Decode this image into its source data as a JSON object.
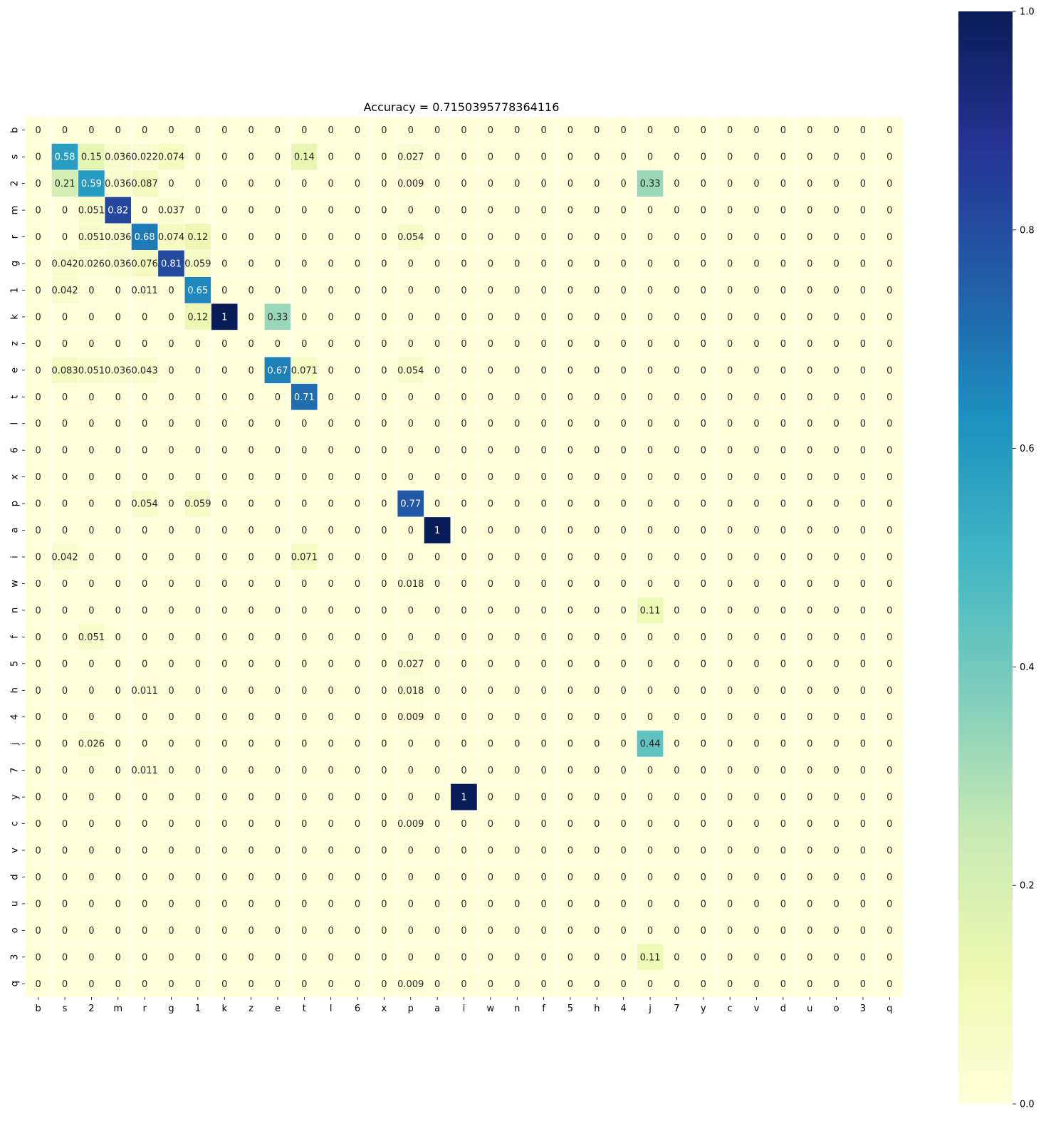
{
  "chart_data": {
    "type": "heatmap",
    "title": "Accuracy = 0.7150395778364116",
    "xlabel": "",
    "ylabel": "",
    "x_labels": [
      "b",
      "s",
      "2",
      "m",
      "r",
      "g",
      "1",
      "k",
      "z",
      "e",
      "t",
      "l",
      "6",
      "x",
      "p",
      "a",
      "i",
      "w",
      "n",
      "f",
      "5",
      "h",
      "4",
      "j",
      "7",
      "y",
      "c",
      "v",
      "d",
      "u",
      "o",
      "3",
      "q"
    ],
    "y_labels": [
      "b",
      "s",
      "2",
      "m",
      "r",
      "g",
      "1",
      "k",
      "z",
      "e",
      "t",
      "l",
      "6",
      "x",
      "p",
      "a",
      "i",
      "w",
      "n",
      "f",
      "5",
      "h",
      "4",
      "j",
      "7",
      "y",
      "c",
      "v",
      "d",
      "u",
      "o",
      "3",
      "q"
    ],
    "values": [
      [
        0,
        0,
        0,
        0,
        0,
        0,
        0,
        0,
        0,
        0,
        0,
        0,
        0,
        0,
        0,
        0,
        0,
        0,
        0,
        0,
        0,
        0,
        0,
        0,
        0,
        0,
        0,
        0,
        0,
        0,
        0,
        0,
        0
      ],
      [
        0,
        0.58,
        0.15,
        0.036,
        0.022,
        0.074,
        0,
        0,
        0,
        0,
        0.14,
        0,
        0,
        0,
        0.027,
        0,
        0,
        0,
        0,
        0,
        0,
        0,
        0,
        0,
        0,
        0,
        0,
        0,
        0,
        0,
        0,
        0,
        0
      ],
      [
        0,
        0.21,
        0.59,
        0.036,
        0.087,
        0,
        0,
        0,
        0,
        0,
        0,
        0,
        0,
        0,
        0.009,
        0,
        0,
        0,
        0,
        0,
        0,
        0,
        0,
        0.33,
        0,
        0,
        0,
        0,
        0,
        0,
        0,
        0,
        0
      ],
      [
        0,
        0,
        0.051,
        0.82,
        0,
        0.037,
        0,
        0,
        0,
        0,
        0,
        0,
        0,
        0,
        0,
        0,
        0,
        0,
        0,
        0,
        0,
        0,
        0,
        0,
        0,
        0,
        0,
        0,
        0,
        0,
        0,
        0,
        0
      ],
      [
        0,
        0,
        0.051,
        0.036,
        0.68,
        0.074,
        0.12,
        0,
        0,
        0,
        0,
        0,
        0,
        0,
        0.054,
        0,
        0,
        0,
        0,
        0,
        0,
        0,
        0,
        0,
        0,
        0,
        0,
        0,
        0,
        0,
        0,
        0,
        0
      ],
      [
        0,
        0.042,
        0.026,
        0.036,
        0.076,
        0.81,
        0.059,
        0,
        0,
        0,
        0,
        0,
        0,
        0,
        0,
        0,
        0,
        0,
        0,
        0,
        0,
        0,
        0,
        0,
        0,
        0,
        0,
        0,
        0,
        0,
        0,
        0,
        0
      ],
      [
        0,
        0.042,
        0,
        0,
        0.011,
        0,
        0.65,
        0,
        0,
        0,
        0,
        0,
        0,
        0,
        0,
        0,
        0,
        0,
        0,
        0,
        0,
        0,
        0,
        0,
        0,
        0,
        0,
        0,
        0,
        0,
        0,
        0,
        0
      ],
      [
        0,
        0,
        0,
        0,
        0,
        0,
        0.12,
        1,
        0,
        0.33,
        0,
        0,
        0,
        0,
        0,
        0,
        0,
        0,
        0,
        0,
        0,
        0,
        0,
        0,
        0,
        0,
        0,
        0,
        0,
        0,
        0,
        0,
        0
      ],
      [
        0,
        0,
        0,
        0,
        0,
        0,
        0,
        0,
        0,
        0,
        0,
        0,
        0,
        0,
        0,
        0,
        0,
        0,
        0,
        0,
        0,
        0,
        0,
        0,
        0,
        0,
        0,
        0,
        0,
        0,
        0,
        0,
        0
      ],
      [
        0,
        0.083,
        0.051,
        0.036,
        0.043,
        0,
        0,
        0,
        0,
        0.67,
        0.071,
        0,
        0,
        0,
        0.054,
        0,
        0,
        0,
        0,
        0,
        0,
        0,
        0,
        0,
        0,
        0,
        0,
        0,
        0,
        0,
        0,
        0,
        0
      ],
      [
        0,
        0,
        0,
        0,
        0,
        0,
        0,
        0,
        0,
        0,
        0.71,
        0,
        0,
        0,
        0,
        0,
        0,
        0,
        0,
        0,
        0,
        0,
        0,
        0,
        0,
        0,
        0,
        0,
        0,
        0,
        0,
        0,
        0
      ],
      [
        0,
        0,
        0,
        0,
        0,
        0,
        0,
        0,
        0,
        0,
        0,
        0,
        0,
        0,
        0,
        0,
        0,
        0,
        0,
        0,
        0,
        0,
        0,
        0,
        0,
        0,
        0,
        0,
        0,
        0,
        0,
        0,
        0
      ],
      [
        0,
        0,
        0,
        0,
        0,
        0,
        0,
        0,
        0,
        0,
        0,
        0,
        0,
        0,
        0,
        0,
        0,
        0,
        0,
        0,
        0,
        0,
        0,
        0,
        0,
        0,
        0,
        0,
        0,
        0,
        0,
        0,
        0
      ],
      [
        0,
        0,
        0,
        0,
        0,
        0,
        0,
        0,
        0,
        0,
        0,
        0,
        0,
        0,
        0,
        0,
        0,
        0,
        0,
        0,
        0,
        0,
        0,
        0,
        0,
        0,
        0,
        0,
        0,
        0,
        0,
        0,
        0
      ],
      [
        0,
        0,
        0,
        0,
        0.054,
        0,
        0.059,
        0,
        0,
        0,
        0,
        0,
        0,
        0,
        0.77,
        0,
        0,
        0,
        0,
        0,
        0,
        0,
        0,
        0,
        0,
        0,
        0,
        0,
        0,
        0,
        0,
        0,
        0
      ],
      [
        0,
        0,
        0,
        0,
        0,
        0,
        0,
        0,
        0,
        0,
        0,
        0,
        0,
        0,
        0,
        1,
        0,
        0,
        0,
        0,
        0,
        0,
        0,
        0,
        0,
        0,
        0,
        0,
        0,
        0,
        0,
        0,
        0
      ],
      [
        0,
        0.042,
        0,
        0,
        0,
        0,
        0,
        0,
        0,
        0,
        0.071,
        0,
        0,
        0,
        0,
        0,
        0,
        0,
        0,
        0,
        0,
        0,
        0,
        0,
        0,
        0,
        0,
        0,
        0,
        0,
        0,
        0,
        0
      ],
      [
        0,
        0,
        0,
        0,
        0,
        0,
        0,
        0,
        0,
        0,
        0,
        0,
        0,
        0,
        0.018,
        0,
        0,
        0,
        0,
        0,
        0,
        0,
        0,
        0,
        0,
        0,
        0,
        0,
        0,
        0,
        0,
        0,
        0
      ],
      [
        0,
        0,
        0,
        0,
        0,
        0,
        0,
        0,
        0,
        0,
        0,
        0,
        0,
        0,
        0,
        0,
        0,
        0,
        0,
        0,
        0,
        0,
        0,
        0.11,
        0,
        0,
        0,
        0,
        0,
        0,
        0,
        0,
        0
      ],
      [
        0,
        0,
        0.051,
        0,
        0,
        0,
        0,
        0,
        0,
        0,
        0,
        0,
        0,
        0,
        0,
        0,
        0,
        0,
        0,
        0,
        0,
        0,
        0,
        0,
        0,
        0,
        0,
        0,
        0,
        0,
        0,
        0,
        0
      ],
      [
        0,
        0,
        0,
        0,
        0,
        0,
        0,
        0,
        0,
        0,
        0,
        0,
        0,
        0,
        0.027,
        0,
        0,
        0,
        0,
        0,
        0,
        0,
        0,
        0,
        0,
        0,
        0,
        0,
        0,
        0,
        0,
        0,
        0
      ],
      [
        0,
        0,
        0,
        0,
        0.011,
        0,
        0,
        0,
        0,
        0,
        0,
        0,
        0,
        0,
        0.018,
        0,
        0,
        0,
        0,
        0,
        0,
        0,
        0,
        0,
        0,
        0,
        0,
        0,
        0,
        0,
        0,
        0,
        0
      ],
      [
        0,
        0,
        0,
        0,
        0,
        0,
        0,
        0,
        0,
        0,
        0,
        0,
        0,
        0,
        0.009,
        0,
        0,
        0,
        0,
        0,
        0,
        0,
        0,
        0,
        0,
        0,
        0,
        0,
        0,
        0,
        0,
        0,
        0
      ],
      [
        0,
        0,
        0.026,
        0,
        0,
        0,
        0,
        0,
        0,
        0,
        0,
        0,
        0,
        0,
        0,
        0,
        0,
        0,
        0,
        0,
        0,
        0,
        0,
        0.44,
        0,
        0,
        0,
        0,
        0,
        0,
        0,
        0,
        0
      ],
      [
        0,
        0,
        0,
        0,
        0.011,
        0,
        0,
        0,
        0,
        0,
        0,
        0,
        0,
        0,
        0,
        0,
        0,
        0,
        0,
        0,
        0,
        0,
        0,
        0,
        0,
        0,
        0,
        0,
        0,
        0,
        0,
        0,
        0
      ],
      [
        0,
        0,
        0,
        0,
        0,
        0,
        0,
        0,
        0,
        0,
        0,
        0,
        0,
        0,
        0,
        0,
        1,
        0,
        0,
        0,
        0,
        0,
        0,
        0,
        0,
        0,
        0,
        0,
        0,
        0,
        0,
        0,
        0
      ],
      [
        0,
        0,
        0,
        0,
        0,
        0,
        0,
        0,
        0,
        0,
        0,
        0,
        0,
        0,
        0.009,
        0,
        0,
        0,
        0,
        0,
        0,
        0,
        0,
        0,
        0,
        0,
        0,
        0,
        0,
        0,
        0,
        0,
        0
      ],
      [
        0,
        0,
        0,
        0,
        0,
        0,
        0,
        0,
        0,
        0,
        0,
        0,
        0,
        0,
        0,
        0,
        0,
        0,
        0,
        0,
        0,
        0,
        0,
        0,
        0,
        0,
        0,
        0,
        0,
        0,
        0,
        0,
        0
      ],
      [
        0,
        0,
        0,
        0,
        0,
        0,
        0,
        0,
        0,
        0,
        0,
        0,
        0,
        0,
        0,
        0,
        0,
        0,
        0,
        0,
        0,
        0,
        0,
        0,
        0,
        0,
        0,
        0,
        0,
        0,
        0,
        0,
        0
      ],
      [
        0,
        0,
        0,
        0,
        0,
        0,
        0,
        0,
        0,
        0,
        0,
        0,
        0,
        0,
        0,
        0,
        0,
        0,
        0,
        0,
        0,
        0,
        0,
        0,
        0,
        0,
        0,
        0,
        0,
        0,
        0,
        0,
        0
      ],
      [
        0,
        0,
        0,
        0,
        0,
        0,
        0,
        0,
        0,
        0,
        0,
        0,
        0,
        0,
        0,
        0,
        0,
        0,
        0,
        0,
        0,
        0,
        0,
        0,
        0,
        0,
        0,
        0,
        0,
        0,
        0,
        0,
        0
      ],
      [
        0,
        0,
        0,
        0,
        0,
        0,
        0,
        0,
        0,
        0,
        0,
        0,
        0,
        0,
        0,
        0,
        0,
        0,
        0,
        0,
        0,
        0,
        0,
        0.11,
        0,
        0,
        0,
        0,
        0,
        0,
        0,
        0,
        0
      ],
      [
        0,
        0,
        0,
        0,
        0,
        0,
        0,
        0,
        0,
        0,
        0,
        0,
        0,
        0,
        0.009,
        0,
        0,
        0,
        0,
        0,
        0,
        0,
        0,
        0,
        0,
        0,
        0,
        0,
        0,
        0,
        0,
        0,
        0
      ]
    ],
    "colorbar": {
      "range": [
        0.0,
        1.0
      ],
      "ticks": [
        "0.0",
        "0.2",
        "0.4",
        "0.6",
        "0.8",
        "1.0"
      ],
      "colormap": "YlGnBu"
    },
    "annotations": true,
    "grid": false,
    "legend": "colorbar-right"
  }
}
